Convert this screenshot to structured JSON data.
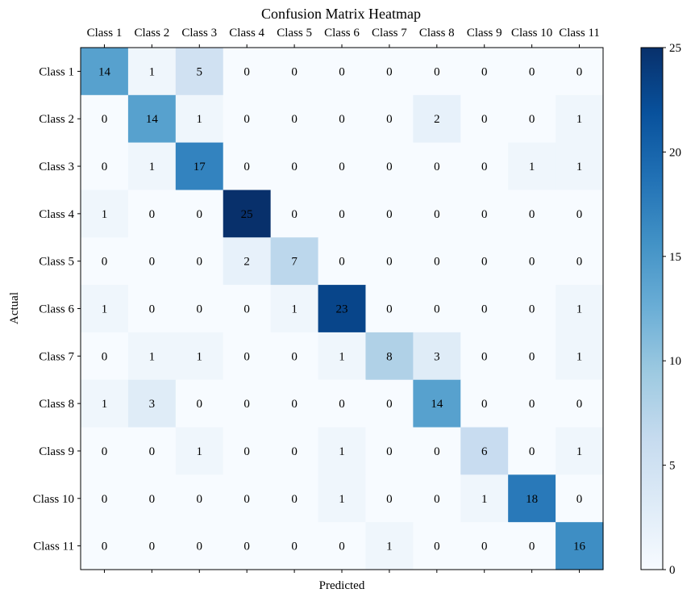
{
  "chart_data": {
    "type": "heatmap",
    "title": "Confusion Matrix Heatmap",
    "xlabel": "Predicted",
    "ylabel": "Actual",
    "x_categories": [
      "Class 1",
      "Class 2",
      "Class 3",
      "Class 4",
      "Class 5",
      "Class 6",
      "Class 7",
      "Class 8",
      "Class 9",
      "Class 10",
      "Class 11"
    ],
    "y_categories": [
      "Class 1",
      "Class 2",
      "Class 3",
      "Class 4",
      "Class 5",
      "Class 6",
      "Class 7",
      "Class 8",
      "Class 9",
      "Class 10",
      "Class 11"
    ],
    "x_tick_position": "top",
    "matrix": [
      [
        14,
        1,
        5,
        0,
        0,
        0,
        0,
        0,
        0,
        0,
        0
      ],
      [
        0,
        14,
        1,
        0,
        0,
        0,
        0,
        2,
        0,
        0,
        1
      ],
      [
        0,
        1,
        17,
        0,
        0,
        0,
        0,
        0,
        0,
        1,
        1
      ],
      [
        1,
        0,
        0,
        25,
        0,
        0,
        0,
        0,
        0,
        0,
        0
      ],
      [
        0,
        0,
        0,
        2,
        7,
        0,
        0,
        0,
        0,
        0,
        0
      ],
      [
        1,
        0,
        0,
        0,
        1,
        23,
        0,
        0,
        0,
        0,
        1
      ],
      [
        0,
        1,
        1,
        0,
        0,
        1,
        8,
        3,
        0,
        0,
        1
      ],
      [
        1,
        3,
        0,
        0,
        0,
        0,
        0,
        14,
        0,
        0,
        0
      ],
      [
        0,
        0,
        1,
        0,
        0,
        1,
        0,
        0,
        6,
        0,
        1
      ],
      [
        0,
        0,
        0,
        0,
        0,
        1,
        0,
        0,
        1,
        18,
        0
      ],
      [
        0,
        0,
        0,
        0,
        0,
        0,
        1,
        0,
        0,
        0,
        16
      ]
    ],
    "colormap": "Blues",
    "colormap_stops": [
      "#f7fbff",
      "#deebf7",
      "#c6dbef",
      "#9ecae1",
      "#6baed6",
      "#4292c6",
      "#2171b5",
      "#08519c",
      "#08306b"
    ],
    "color_range": [
      0,
      25
    ],
    "colorbar_ticks": [
      0,
      5,
      10,
      15,
      20,
      25
    ],
    "grid": false,
    "annotation_color": "#000000"
  }
}
